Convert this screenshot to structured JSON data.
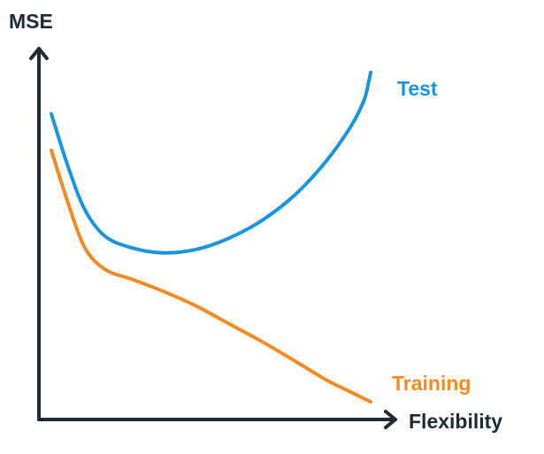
{
  "chart_data": {
    "type": "line",
    "title": "",
    "xlabel": "Flexibility",
    "ylabel": "MSE",
    "grid": false,
    "xlim": [
      0,
      10
    ],
    "ylim": [
      0,
      10
    ],
    "series": [
      {
        "name": "Test",
        "color": "#1a95dd",
        "x": [
          0.0,
          0.5,
          1.0,
          1.6,
          2.4,
          3.3,
          4.3,
          5.3,
          6.3,
          7.3,
          8.2,
          8.9,
          9.3,
          9.45,
          9.5
        ],
        "y": [
          8.7,
          7.1,
          5.8,
          5.0,
          4.65,
          4.5,
          4.6,
          4.95,
          5.5,
          6.3,
          7.3,
          8.3,
          9.1,
          9.7,
          9.95
        ]
      },
      {
        "name": "Training",
        "color": "#f28b23",
        "x": [
          0.0,
          0.5,
          1.0,
          1.6,
          2.4,
          3.3,
          4.3,
          5.3,
          6.3,
          7.3,
          8.2,
          8.9,
          9.5
        ],
        "y": [
          7.6,
          6.0,
          4.65,
          4.0,
          3.7,
          3.35,
          2.9,
          2.35,
          1.8,
          1.2,
          0.65,
          0.3,
          0.0
        ]
      }
    ]
  }
}
